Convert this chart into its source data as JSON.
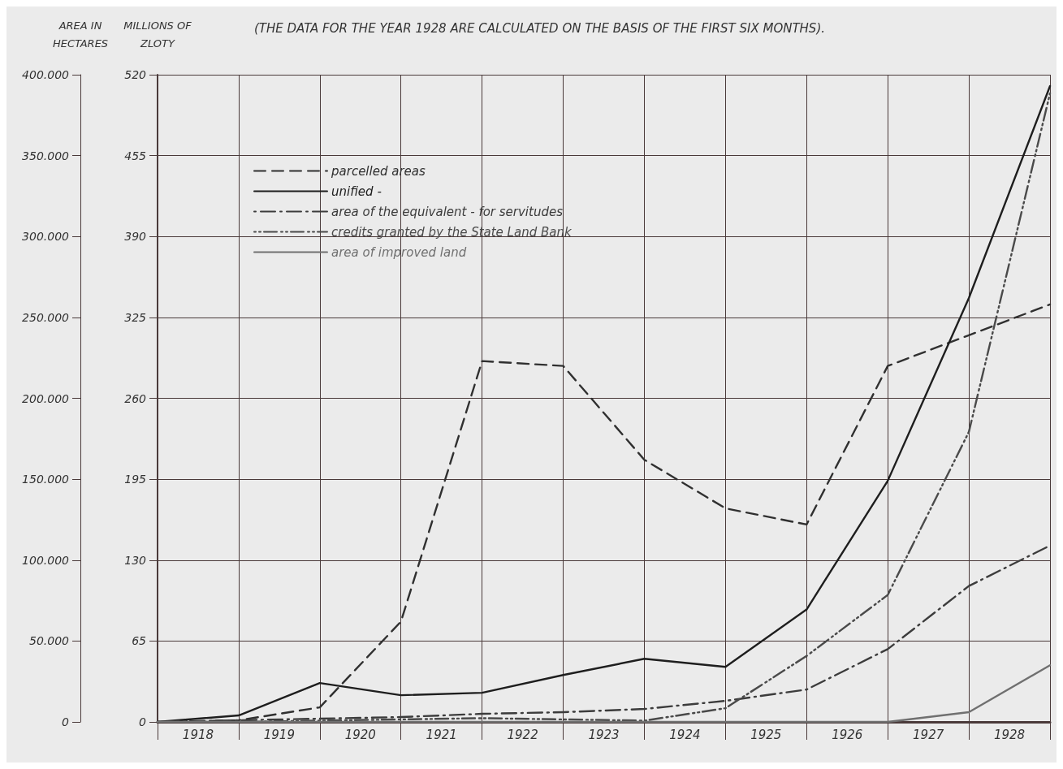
{
  "chart_data": {
    "type": "line",
    "subtitle": "(THE DATA FOR THE YEAR 1928 ARE CALCULATED ON THE BASIS OF THE FIRST SIX MONTHS).",
    "ylabel": "AREA IN HECTARES",
    "y2label": "MILLIONS OF ZLOTY",
    "x": [
      1918,
      1919,
      1920,
      1921,
      1922,
      1923,
      1924,
      1925,
      1926,
      1927,
      1928,
      1929
    ],
    "xlim": [
      1918,
      1929
    ],
    "xticks": [
      {
        "value": 1918,
        "label": null
      },
      {
        "value": 1918.5,
        "label": "1918"
      },
      {
        "value": 1919,
        "label": null
      },
      {
        "value": 1919.5,
        "label": "1919"
      },
      {
        "value": 1920,
        "label": null
      },
      {
        "value": 1920.5,
        "label": "1920"
      },
      {
        "value": 1921,
        "label": null
      },
      {
        "value": 1921.5,
        "label": "1921"
      },
      {
        "value": 1922,
        "label": null
      },
      {
        "value": 1922.5,
        "label": "1922"
      },
      {
        "value": 1923,
        "label": null
      },
      {
        "value": 1923.5,
        "label": "1923"
      },
      {
        "value": 1924,
        "label": null
      },
      {
        "value": 1924.5,
        "label": "1924"
      },
      {
        "value": 1925,
        "label": null
      },
      {
        "value": 1925.5,
        "label": "1925"
      },
      {
        "value": 1926,
        "label": null
      },
      {
        "value": 1926.5,
        "label": "1926"
      },
      {
        "value": 1927,
        "label": null
      },
      {
        "value": 1927.5,
        "label": "1927"
      },
      {
        "value": 1928,
        "label": null
      },
      {
        "value": 1928.5,
        "label": "1928"
      },
      {
        "value": 1929,
        "label": null
      }
    ],
    "ylim": [
      0,
      400000
    ],
    "yticks": [
      0,
      {
        "value": 50000,
        "label": "50.000"
      },
      {
        "value": 100000,
        "label": "100.000"
      },
      {
        "value": 150000,
        "label": "150.000"
      },
      {
        "value": 200000,
        "label": "200.000"
      },
      {
        "value": 250000,
        "label": "250.000"
      },
      {
        "value": 300000,
        "label": "300.000"
      },
      {
        "value": 350000,
        "label": "350.000"
      },
      {
        "value": 400000,
        "label": "400.000"
      }
    ],
    "y2lim": [
      0,
      520
    ],
    "y2ticks": [
      0,
      65,
      130,
      195,
      260,
      325,
      390,
      455,
      520
    ],
    "grid": true,
    "legend": "top left",
    "marker": "none",
    "series": [
      {
        "name": "parcelled areas",
        "color": "#303030",
        "line_style": "dashed",
        "values": [
          0,
          1000,
          9000,
          62000,
          223000,
          220000,
          162000,
          132000,
          122000,
          220000,
          239000,
          258000
        ]
      },
      {
        "name": "unified -",
        "color": "#1e1e1e",
        "line_style": "solid",
        "values": [
          0,
          4000,
          24000,
          16500,
          18000,
          29000,
          39000,
          34000,
          69500,
          149000,
          262000,
          393000
        ]
      },
      {
        "name": "area of the equivalent - for servitudes",
        "color": "#3c3c3c",
        "line_style": "dashdot",
        "values": [
          0,
          1000,
          2000,
          3000,
          5000,
          6000,
          8000,
          13000,
          20000,
          45000,
          84000,
          109000
        ]
      },
      {
        "name": "credits granted by the State Land Bank",
        "color": "#4a4a4a",
        "line_style": "dashdotdot",
        "axis": "y2",
        "values": [
          0,
          0,
          1,
          2,
          3,
          2,
          1,
          11,
          53,
          102,
          233,
          505
        ]
      },
      {
        "name": "area of improved land",
        "color": "#707070",
        "line_style": "solid",
        "values": [
          0,
          0,
          0,
          0,
          0,
          0,
          0,
          0,
          0,
          0,
          6000,
          35000
        ]
      }
    ]
  }
}
